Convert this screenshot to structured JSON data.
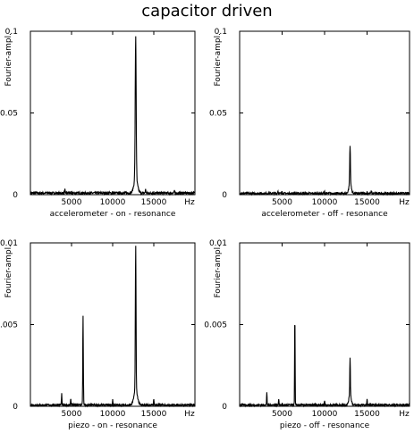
{
  "figure_title": "capacitor driven",
  "chart_data": [
    {
      "type": "line",
      "xlabel": "accelerometer - on - resonance",
      "x_unit": "Hz",
      "ylabel": "Fourier-ampl.",
      "xlim": [
        0,
        20000
      ],
      "ylim": [
        0,
        0.1
      ],
      "x_ticks": [
        "5000",
        "10000",
        "15000"
      ],
      "y_ticks": [
        "0",
        "0.05",
        "0.1"
      ],
      "baseline": 0.001,
      "peaks": [
        {
          "x": 12800,
          "y": 0.087,
          "width": 80
        },
        {
          "x": 12800,
          "y": 0.009,
          "width": 300
        },
        {
          "x": 4200,
          "y": 0.002,
          "width": 40
        },
        {
          "x": 14000,
          "y": 0.0025,
          "width": 40
        },
        {
          "x": 17500,
          "y": 0.0015,
          "width": 40
        }
      ]
    },
    {
      "type": "line",
      "xlabel": "accelerometer - off - resonance",
      "x_unit": "Hz",
      "ylabel": "Fourier-ampl.",
      "xlim": [
        0,
        20000
      ],
      "ylim": [
        0,
        0.1
      ],
      "x_ticks": [
        "5000",
        "10000",
        "15000"
      ],
      "y_ticks": [
        "0",
        "0.05",
        "0.1"
      ],
      "baseline": 0.0008,
      "peaks": [
        {
          "x": 13000,
          "y": 0.023,
          "width": 60
        },
        {
          "x": 13000,
          "y": 0.006,
          "width": 200
        },
        {
          "x": 4500,
          "y": 0.0015,
          "width": 40
        },
        {
          "x": 10000,
          "y": 0.0012,
          "width": 40
        },
        {
          "x": 15500,
          "y": 0.0015,
          "width": 40
        }
      ]
    },
    {
      "type": "line",
      "xlabel": "piezo - on - resonance",
      "x_unit": "Hz",
      "ylabel": "Fourier-ampl.",
      "xlim": [
        0,
        20000
      ],
      "ylim": [
        0,
        0.01
      ],
      "x_ticks": [
        "5000",
        "10000",
        "15000"
      ],
      "y_ticks": [
        "0",
        "0.005",
        "0.01"
      ],
      "baseline": 8e-05,
      "peaks": [
        {
          "x": 12800,
          "y": 0.0089,
          "width": 60
        },
        {
          "x": 12800,
          "y": 0.0009,
          "width": 300
        },
        {
          "x": 6400,
          "y": 0.0055,
          "width": 50
        },
        {
          "x": 3800,
          "y": 0.0007,
          "width": 40
        },
        {
          "x": 4900,
          "y": 0.0004,
          "width": 40
        },
        {
          "x": 10000,
          "y": 0.0003,
          "width": 40
        },
        {
          "x": 15000,
          "y": 0.0004,
          "width": 40
        }
      ]
    },
    {
      "type": "line",
      "xlabel": "piezo - off - resonance",
      "x_unit": "Hz",
      "ylabel": "Fourier-ampl.",
      "xlim": [
        0,
        20000
      ],
      "ylim": [
        0,
        0.01
      ],
      "x_ticks": [
        "5000",
        "10000",
        "15000"
      ],
      "y_ticks": [
        "0",
        "0.005",
        "0.01"
      ],
      "baseline": 8e-05,
      "peaks": [
        {
          "x": 6500,
          "y": 0.0055,
          "width": 40
        },
        {
          "x": 13000,
          "y": 0.0023,
          "width": 50
        },
        {
          "x": 13000,
          "y": 0.0006,
          "width": 200
        },
        {
          "x": 3200,
          "y": 0.0008,
          "width": 40
        },
        {
          "x": 4600,
          "y": 0.0004,
          "width": 40
        },
        {
          "x": 10000,
          "y": 0.0003,
          "width": 40
        },
        {
          "x": 15000,
          "y": 0.0004,
          "width": 40
        }
      ]
    }
  ]
}
